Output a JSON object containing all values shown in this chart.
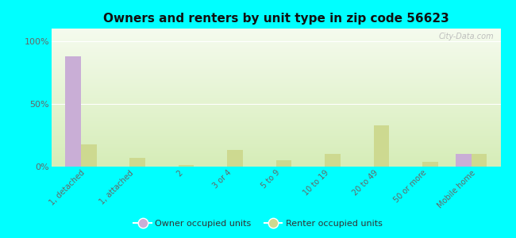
{
  "title": "Owners and renters by unit type in zip code 56623",
  "categories": [
    "1, detached",
    "1, attached",
    "2",
    "3 or 4",
    "5 to 9",
    "10 to 19",
    "20 to 49",
    "50 or more",
    "Mobile home"
  ],
  "owner_values": [
    88,
    0,
    0,
    0,
    0,
    0,
    0,
    0,
    10
  ],
  "renter_values": [
    18,
    7,
    1,
    13,
    5,
    10,
    33,
    4,
    10
  ],
  "owner_color": "#c9aed6",
  "renter_color": "#cdd990",
  "bg_color": "#00ffff",
  "grad_top": "#f5fbee",
  "grad_bottom": "#d6edb8",
  "ylabel_ticks": [
    "0%",
    "50%",
    "100%"
  ],
  "ytick_vals": [
    0,
    50,
    100
  ],
  "ylim_max": 110,
  "bar_width": 0.32,
  "legend_owner": "Owner occupied units",
  "legend_renter": "Renter occupied units",
  "watermark": "City-Data.com"
}
